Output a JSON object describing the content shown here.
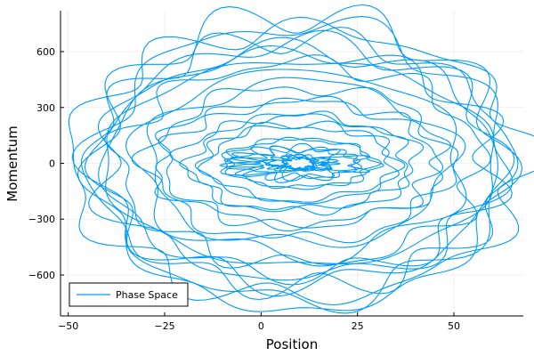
{
  "chart_data": {
    "type": "line",
    "title": "",
    "xlabel": "Position",
    "ylabel": "Momentum",
    "xlim": [
      -52,
      68
    ],
    "ylim": [
      -820,
      820
    ],
    "xticks": [
      -50,
      -25,
      0,
      25,
      50
    ],
    "yticks": [
      -600,
      -300,
      0,
      300,
      600
    ],
    "x_tick_labels": [
      "−50",
      "−25",
      "0",
      "25",
      "50"
    ],
    "y_tick_labels": [
      "−600",
      "−300",
      "0",
      "300",
      "600"
    ],
    "grid": true,
    "legend_position": "bottom-left",
    "series": [
      {
        "name": "Phase Space",
        "color": "#009af9",
        "description_of_shape": "many nested noisy elliptical loops centered near (10, 0); outermost extends x≈-50..65, y≈-770..760; dense tangle near center (x≈0..18, y≈±40)",
        "envelope": {
          "center_x": 10,
          "center_y": 0,
          "radii": [
            [
              4,
              30
            ],
            [
              8,
              40
            ],
            [
              15,
              80
            ],
            [
              20,
              140
            ],
            [
              25,
              200
            ],
            [
              30,
              260
            ],
            [
              35,
              330
            ],
            [
              40,
              420
            ],
            [
              45,
              500
            ],
            [
              50,
              560
            ],
            [
              55,
              640
            ],
            [
              57,
              700
            ],
            [
              58,
              750
            ]
          ]
        }
      }
    ]
  }
}
